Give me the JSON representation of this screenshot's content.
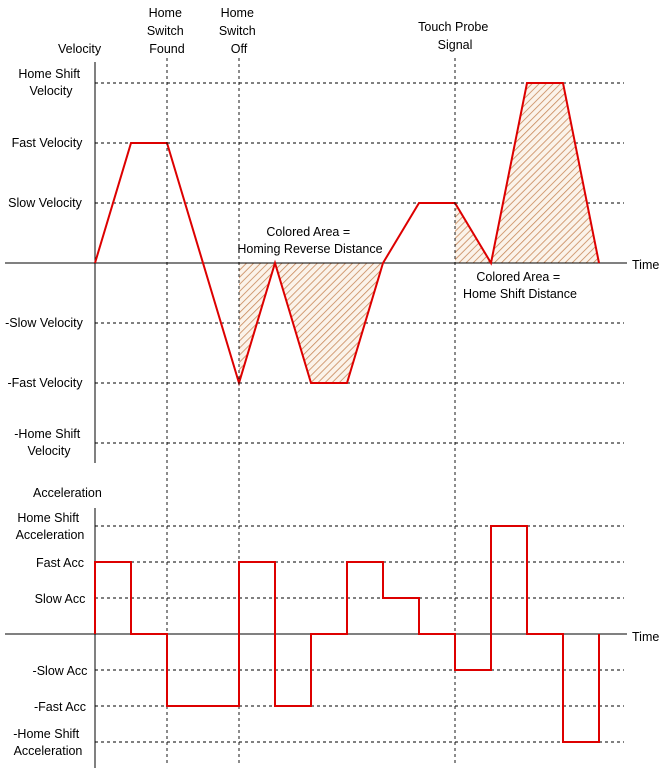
{
  "velocity_chart": {
    "title": "Velocity",
    "time_label": "Time",
    "level_labels": [
      {
        "id": "home-shift",
        "lines": [
          "Home Shift",
          "Velocity"
        ]
      },
      {
        "id": "fast",
        "lines": [
          "Fast Velocity"
        ]
      },
      {
        "id": "slow",
        "lines": [
          "Slow Velocity"
        ]
      },
      {
        "id": "neg-slow",
        "lines": [
          "-Slow Velocity"
        ]
      },
      {
        "id": "neg-fast",
        "lines": [
          "-Fast Velocity"
        ]
      },
      {
        "id": "neg-home-shift",
        "lines": [
          "-Home Shift",
          "Velocity"
        ]
      }
    ],
    "levels": {
      "home-shift": 3,
      "fast": 2,
      "slow": 1,
      "zero": 0,
      "neg-slow": -1,
      "neg-fast": -2,
      "neg-home-shift": -3
    },
    "profile": [
      [
        0,
        0
      ],
      [
        1,
        2
      ],
      [
        2,
        2
      ],
      [
        4,
        -2
      ],
      [
        5,
        0
      ],
      [
        6,
        -2
      ],
      [
        7,
        -2
      ],
      [
        8,
        0
      ],
      [
        9,
        1
      ],
      [
        10,
        1
      ],
      [
        11,
        0
      ],
      [
        12,
        3
      ],
      [
        13,
        3
      ],
      [
        14,
        0
      ]
    ],
    "annotations": [
      {
        "id": "homing-reverse",
        "lines": [
          "Colored Area =",
          "Homing Reverse Distance"
        ]
      },
      {
        "id": "home-shift",
        "lines": [
          "Colored Area =",
          "Home Shift Distance"
        ]
      }
    ]
  },
  "acceleration_chart": {
    "title": "Acceleration",
    "time_label": "Time",
    "level_labels": [
      {
        "id": "home-shift",
        "lines": [
          "Home Shift",
          "Acceleration"
        ]
      },
      {
        "id": "fast",
        "lines": [
          "Fast Acc"
        ]
      },
      {
        "id": "slow",
        "lines": [
          "Slow Acc"
        ]
      },
      {
        "id": "neg-slow",
        "lines": [
          "-Slow Acc"
        ]
      },
      {
        "id": "neg-fast",
        "lines": [
          "-Fast Acc"
        ]
      },
      {
        "id": "neg-home-shift",
        "lines": [
          "-Home Shift",
          "Acceleration"
        ]
      }
    ],
    "levels": {
      "home-shift": 3,
      "fast": 2,
      "slow": 1,
      "zero": 0,
      "neg-slow": -1,
      "neg-fast": -2,
      "neg-home-shift": -3
    },
    "steps": [
      [
        0,
        2
      ],
      [
        1,
        0
      ],
      [
        2,
        -2
      ],
      [
        4,
        2
      ],
      [
        5,
        -2
      ],
      [
        6,
        0
      ],
      [
        7,
        2
      ],
      [
        8,
        1
      ],
      [
        9,
        0
      ],
      [
        10,
        -1
      ],
      [
        11,
        3
      ],
      [
        12,
        0
      ],
      [
        13,
        -3
      ],
      [
        14,
        0
      ]
    ]
  },
  "events": [
    {
      "id": "home-switch-found",
      "lines": [
        "Home",
        "Switch",
        "Found"
      ],
      "t": 2
    },
    {
      "id": "home-switch-off",
      "lines": [
        "Home",
        "Switch",
        "Off"
      ],
      "t": 4
    },
    {
      "id": "touch-probe",
      "lines": [
        "Touch Probe",
        "Signal"
      ],
      "t": 10
    }
  ],
  "colors": {
    "trace": "#dd0000",
    "hatch": "#c8885a",
    "axis": "#000000"
  }
}
